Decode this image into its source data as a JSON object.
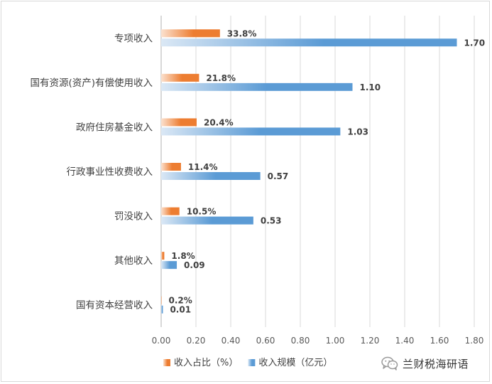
{
  "chart_data": {
    "type": "bar",
    "orientation": "horizontal",
    "categories": [
      "专项收入",
      "国有资源(资产)有偿使用收入",
      "政府住房基金收入",
      "行政事业性收费收入",
      "罚没收入",
      "其他收入",
      "国有资本经营收入"
    ],
    "series": [
      {
        "name": "收入占比（%）",
        "values": [
          0.338,
          0.218,
          0.204,
          0.114,
          0.105,
          0.018,
          0.002
        ],
        "labels": [
          "33.8%",
          "21.8%",
          "20.4%",
          "11.4%",
          "10.5%",
          "1.8%",
          "0.2%"
        ],
        "color": "#ed7d31",
        "color_light": "#fbe1cf"
      },
      {
        "name": "收入规模（亿元）",
        "values": [
          1.7,
          1.1,
          1.03,
          0.57,
          0.53,
          0.09,
          0.01
        ],
        "labels": [
          "1.70",
          "1.10",
          "1.03",
          "0.57",
          "0.53",
          "0.09",
          "0.01"
        ],
        "color": "#5b9bd5",
        "color_light": "#dbe8f5"
      }
    ],
    "x_ticks": [
      "0.00",
      "0.20",
      "0.40",
      "0.60",
      "0.80",
      "1.00",
      "1.20",
      "1.40",
      "1.60",
      "1.80"
    ],
    "xlim": [
      0,
      1.8
    ],
    "grid": "vertical",
    "legend_position": "bottom"
  },
  "watermark": {
    "text": "兰财税海研语",
    "icon": "wechat-icon",
    "icon_color": "#9a9a9a"
  }
}
